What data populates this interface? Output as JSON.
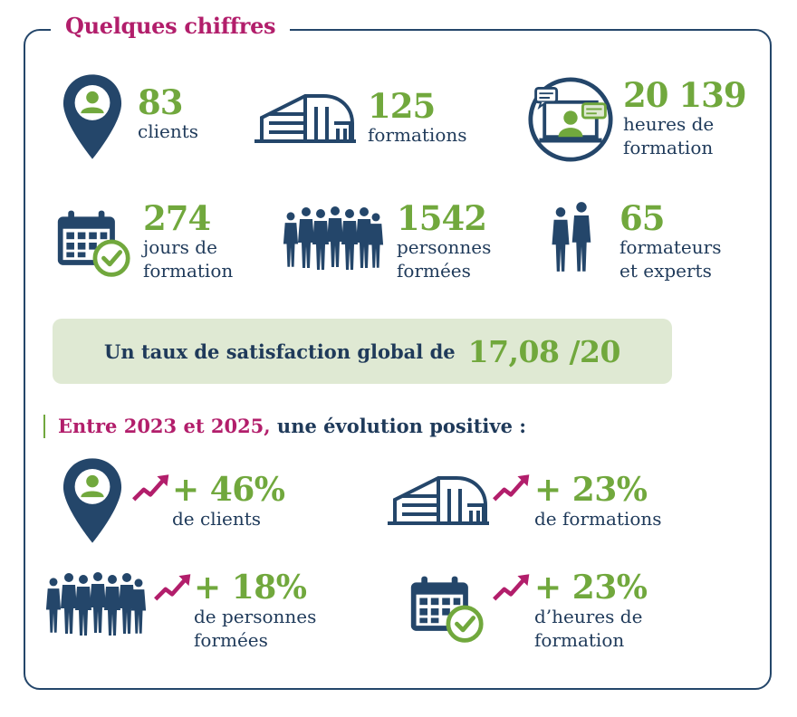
{
  "title": "Quelques chiffres",
  "stats": [
    {
      "value": "83",
      "label": "clients",
      "icon": "location-pin-user-icon"
    },
    {
      "value": "125",
      "label": "formations",
      "icon": "building-icon"
    },
    {
      "value": "20 139",
      "label": "heures de\nformation",
      "icon": "video-call-icon"
    },
    {
      "value": "274",
      "label": "jours de\nformation",
      "icon": "calendar-check-icon"
    },
    {
      "value": "1542",
      "label": "personnes\nformées",
      "icon": "group-people-icon"
    },
    {
      "value": "65",
      "label": "formateurs\net experts",
      "icon": "two-people-icon"
    }
  ],
  "satisfaction": {
    "text": "Un taux de satisfaction global de",
    "value": "17,08 /20"
  },
  "evolution": {
    "title_highlight": "Entre 2023 et 2025,",
    "title_rest": " une évolution positive :",
    "items": [
      {
        "value": "+ 46%",
        "label": "de clients",
        "icon": "location-pin-user-icon"
      },
      {
        "value": "+ 23%",
        "label": "de formations",
        "icon": "building-icon"
      },
      {
        "value": "+ 18%",
        "label": "de personnes\nformées",
        "icon": "group-people-icon"
      },
      {
        "value": "+ 23%",
        "label": "d’heures de\nformation",
        "icon": "calendar-check-icon"
      }
    ]
  },
  "colors": {
    "navy": "#1f3a5a",
    "green": "#71a83d",
    "pink": "#b21e6b",
    "banner": "#dfe9d3"
  }
}
